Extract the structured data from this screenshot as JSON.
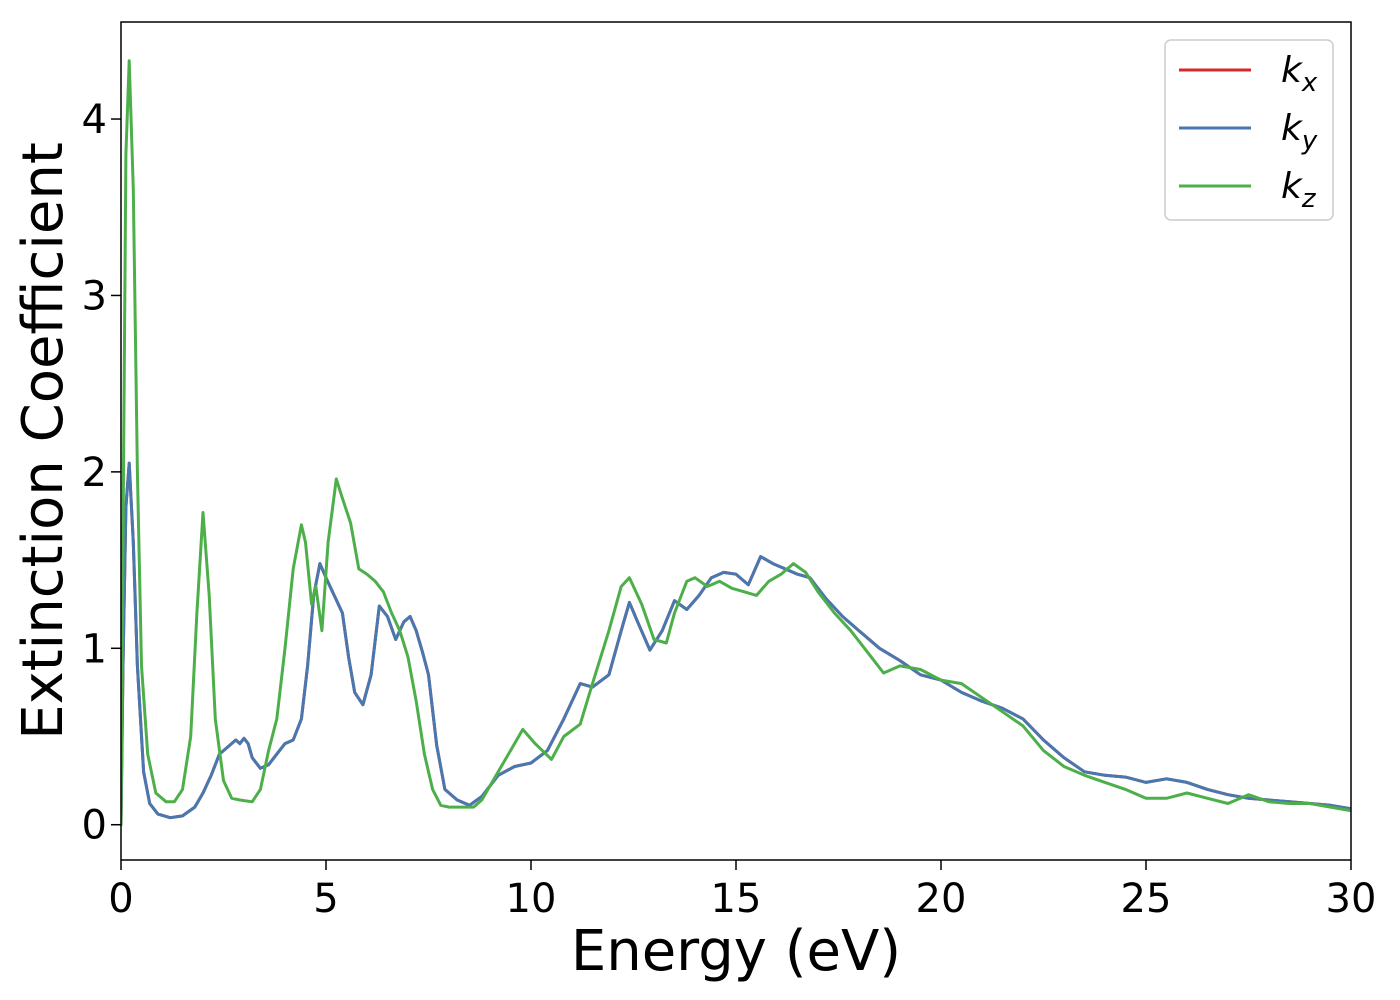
{
  "chart_data": {
    "type": "line",
    "title": "",
    "xlabel": "Energy (eV)",
    "ylabel": "Extinction Coefficient",
    "xlim": [
      0,
      30
    ],
    "ylim": [
      -0.2,
      4.55
    ],
    "xticks": [
      0,
      5,
      10,
      15,
      20,
      25,
      30
    ],
    "yticks": [
      0,
      1,
      2,
      3,
      4
    ],
    "grid": false,
    "legend_position": "top-right",
    "series": [
      {
        "name": "k_x",
        "label_base": "k",
        "label_sub": "x",
        "color": "#d62728",
        "points": [
          [
            0,
            0
          ],
          [
            0.05,
            0.9
          ],
          [
            0.12,
            1.8
          ],
          [
            0.2,
            2.05
          ],
          [
            0.3,
            1.6
          ],
          [
            0.4,
            0.9
          ],
          [
            0.55,
            0.3
          ],
          [
            0.7,
            0.12
          ],
          [
            0.9,
            0.06
          ],
          [
            1.2,
            0.04
          ],
          [
            1.5,
            0.05
          ],
          [
            1.8,
            0.1
          ],
          [
            2.0,
            0.18
          ],
          [
            2.2,
            0.28
          ],
          [
            2.4,
            0.4
          ],
          [
            2.6,
            0.44
          ],
          [
            2.8,
            0.48
          ],
          [
            2.9,
            0.46
          ],
          [
            3.0,
            0.49
          ],
          [
            3.1,
            0.46
          ],
          [
            3.2,
            0.38
          ],
          [
            3.4,
            0.32
          ],
          [
            3.6,
            0.34
          ],
          [
            3.8,
            0.4
          ],
          [
            4.0,
            0.46
          ],
          [
            4.2,
            0.48
          ],
          [
            4.4,
            0.6
          ],
          [
            4.55,
            0.9
          ],
          [
            4.7,
            1.3
          ],
          [
            4.85,
            1.48
          ],
          [
            5.0,
            1.4
          ],
          [
            5.2,
            1.3
          ],
          [
            5.4,
            1.2
          ],
          [
            5.55,
            0.95
          ],
          [
            5.7,
            0.75
          ],
          [
            5.9,
            0.68
          ],
          [
            6.1,
            0.85
          ],
          [
            6.3,
            1.24
          ],
          [
            6.5,
            1.18
          ],
          [
            6.7,
            1.05
          ],
          [
            6.9,
            1.15
          ],
          [
            7.05,
            1.18
          ],
          [
            7.2,
            1.1
          ],
          [
            7.35,
            0.98
          ],
          [
            7.5,
            0.85
          ],
          [
            7.7,
            0.45
          ],
          [
            7.9,
            0.2
          ],
          [
            8.2,
            0.14
          ],
          [
            8.5,
            0.11
          ],
          [
            8.8,
            0.16
          ],
          [
            9.2,
            0.28
          ],
          [
            9.6,
            0.33
          ],
          [
            10.0,
            0.35
          ],
          [
            10.4,
            0.42
          ],
          [
            10.8,
            0.6
          ],
          [
            11.2,
            0.8
          ],
          [
            11.5,
            0.78
          ],
          [
            11.9,
            0.85
          ],
          [
            12.2,
            1.1
          ],
          [
            12.4,
            1.26
          ],
          [
            12.6,
            1.15
          ],
          [
            12.9,
            0.99
          ],
          [
            13.2,
            1.1
          ],
          [
            13.5,
            1.27
          ],
          [
            13.8,
            1.22
          ],
          [
            14.1,
            1.3
          ],
          [
            14.4,
            1.4
          ],
          [
            14.7,
            1.43
          ],
          [
            15.0,
            1.42
          ],
          [
            15.3,
            1.36
          ],
          [
            15.6,
            1.52
          ],
          [
            15.9,
            1.48
          ],
          [
            16.2,
            1.45
          ],
          [
            16.5,
            1.42
          ],
          [
            16.8,
            1.4
          ],
          [
            17.2,
            1.28
          ],
          [
            17.6,
            1.18
          ],
          [
            18.0,
            1.1
          ],
          [
            18.5,
            1.0
          ],
          [
            19.0,
            0.93
          ],
          [
            19.5,
            0.85
          ],
          [
            20.0,
            0.82
          ],
          [
            20.5,
            0.75
          ],
          [
            21.0,
            0.7
          ],
          [
            21.5,
            0.66
          ],
          [
            22.0,
            0.6
          ],
          [
            22.5,
            0.48
          ],
          [
            23.0,
            0.38
          ],
          [
            23.5,
            0.3
          ],
          [
            24.0,
            0.28
          ],
          [
            24.5,
            0.27
          ],
          [
            25.0,
            0.24
          ],
          [
            25.5,
            0.26
          ],
          [
            26.0,
            0.24
          ],
          [
            26.5,
            0.2
          ],
          [
            27.0,
            0.17
          ],
          [
            27.5,
            0.15
          ],
          [
            28.0,
            0.14
          ],
          [
            28.5,
            0.13
          ],
          [
            29.0,
            0.12
          ],
          [
            29.5,
            0.11
          ],
          [
            30.0,
            0.09
          ]
        ]
      },
      {
        "name": "k_y",
        "label_base": "k",
        "label_sub": "y",
        "color": "#4878b0",
        "points": [
          [
            0,
            0
          ],
          [
            0.05,
            0.9
          ],
          [
            0.12,
            1.8
          ],
          [
            0.2,
            2.05
          ],
          [
            0.3,
            1.6
          ],
          [
            0.4,
            0.9
          ],
          [
            0.55,
            0.3
          ],
          [
            0.7,
            0.12
          ],
          [
            0.9,
            0.06
          ],
          [
            1.2,
            0.04
          ],
          [
            1.5,
            0.05
          ],
          [
            1.8,
            0.1
          ],
          [
            2.0,
            0.18
          ],
          [
            2.2,
            0.28
          ],
          [
            2.4,
            0.4
          ],
          [
            2.6,
            0.44
          ],
          [
            2.8,
            0.48
          ],
          [
            2.9,
            0.46
          ],
          [
            3.0,
            0.49
          ],
          [
            3.1,
            0.46
          ],
          [
            3.2,
            0.38
          ],
          [
            3.4,
            0.32
          ],
          [
            3.6,
            0.34
          ],
          [
            3.8,
            0.4
          ],
          [
            4.0,
            0.46
          ],
          [
            4.2,
            0.48
          ],
          [
            4.4,
            0.6
          ],
          [
            4.55,
            0.9
          ],
          [
            4.7,
            1.3
          ],
          [
            4.85,
            1.48
          ],
          [
            5.0,
            1.4
          ],
          [
            5.2,
            1.3
          ],
          [
            5.4,
            1.2
          ],
          [
            5.55,
            0.95
          ],
          [
            5.7,
            0.75
          ],
          [
            5.9,
            0.68
          ],
          [
            6.1,
            0.85
          ],
          [
            6.3,
            1.24
          ],
          [
            6.5,
            1.18
          ],
          [
            6.7,
            1.05
          ],
          [
            6.9,
            1.15
          ],
          [
            7.05,
            1.18
          ],
          [
            7.2,
            1.1
          ],
          [
            7.35,
            0.98
          ],
          [
            7.5,
            0.85
          ],
          [
            7.7,
            0.45
          ],
          [
            7.9,
            0.2
          ],
          [
            8.2,
            0.14
          ],
          [
            8.5,
            0.11
          ],
          [
            8.8,
            0.16
          ],
          [
            9.2,
            0.28
          ],
          [
            9.6,
            0.33
          ],
          [
            10.0,
            0.35
          ],
          [
            10.4,
            0.42
          ],
          [
            10.8,
            0.6
          ],
          [
            11.2,
            0.8
          ],
          [
            11.5,
            0.78
          ],
          [
            11.9,
            0.85
          ],
          [
            12.2,
            1.1
          ],
          [
            12.4,
            1.26
          ],
          [
            12.6,
            1.15
          ],
          [
            12.9,
            0.99
          ],
          [
            13.2,
            1.1
          ],
          [
            13.5,
            1.27
          ],
          [
            13.8,
            1.22
          ],
          [
            14.1,
            1.3
          ],
          [
            14.4,
            1.4
          ],
          [
            14.7,
            1.43
          ],
          [
            15.0,
            1.42
          ],
          [
            15.3,
            1.36
          ],
          [
            15.6,
            1.52
          ],
          [
            15.9,
            1.48
          ],
          [
            16.2,
            1.45
          ],
          [
            16.5,
            1.42
          ],
          [
            16.8,
            1.4
          ],
          [
            17.2,
            1.28
          ],
          [
            17.6,
            1.18
          ],
          [
            18.0,
            1.1
          ],
          [
            18.5,
            1.0
          ],
          [
            19.0,
            0.93
          ],
          [
            19.5,
            0.85
          ],
          [
            20.0,
            0.82
          ],
          [
            20.5,
            0.75
          ],
          [
            21.0,
            0.7
          ],
          [
            21.5,
            0.66
          ],
          [
            22.0,
            0.6
          ],
          [
            22.5,
            0.48
          ],
          [
            23.0,
            0.38
          ],
          [
            23.5,
            0.3
          ],
          [
            24.0,
            0.28
          ],
          [
            24.5,
            0.27
          ],
          [
            25.0,
            0.24
          ],
          [
            25.5,
            0.26
          ],
          [
            26.0,
            0.24
          ],
          [
            26.5,
            0.2
          ],
          [
            27.0,
            0.17
          ],
          [
            27.5,
            0.15
          ],
          [
            28.0,
            0.14
          ],
          [
            28.5,
            0.13
          ],
          [
            29.0,
            0.12
          ],
          [
            29.5,
            0.11
          ],
          [
            30.0,
            0.09
          ]
        ]
      },
      {
        "name": "k_z",
        "label_base": "k",
        "label_sub": "z",
        "color": "#4daf4a",
        "points": [
          [
            0,
            0
          ],
          [
            0.06,
            2.0
          ],
          [
            0.12,
            3.8
          ],
          [
            0.2,
            4.33
          ],
          [
            0.3,
            3.6
          ],
          [
            0.4,
            2.0
          ],
          [
            0.5,
            0.9
          ],
          [
            0.65,
            0.4
          ],
          [
            0.85,
            0.18
          ],
          [
            1.1,
            0.13
          ],
          [
            1.3,
            0.13
          ],
          [
            1.5,
            0.2
          ],
          [
            1.7,
            0.5
          ],
          [
            1.85,
            1.2
          ],
          [
            2.0,
            1.77
          ],
          [
            2.15,
            1.3
          ],
          [
            2.3,
            0.6
          ],
          [
            2.5,
            0.25
          ],
          [
            2.7,
            0.15
          ],
          [
            2.9,
            0.14
          ],
          [
            3.2,
            0.13
          ],
          [
            3.4,
            0.2
          ],
          [
            3.6,
            0.42
          ],
          [
            3.8,
            0.6
          ],
          [
            4.0,
            1.0
          ],
          [
            4.2,
            1.45
          ],
          [
            4.4,
            1.7
          ],
          [
            4.5,
            1.6
          ],
          [
            4.65,
            1.25
          ],
          [
            4.75,
            1.35
          ],
          [
            4.9,
            1.1
          ],
          [
            5.05,
            1.6
          ],
          [
            5.25,
            1.96
          ],
          [
            5.4,
            1.85
          ],
          [
            5.6,
            1.71
          ],
          [
            5.8,
            1.45
          ],
          [
            6.0,
            1.42
          ],
          [
            6.2,
            1.38
          ],
          [
            6.4,
            1.32
          ],
          [
            6.6,
            1.2
          ],
          [
            6.8,
            1.1
          ],
          [
            7.0,
            0.95
          ],
          [
            7.2,
            0.7
          ],
          [
            7.4,
            0.4
          ],
          [
            7.6,
            0.2
          ],
          [
            7.8,
            0.11
          ],
          [
            8.0,
            0.1
          ],
          [
            8.3,
            0.1
          ],
          [
            8.6,
            0.1
          ],
          [
            8.8,
            0.14
          ],
          [
            9.2,
            0.3
          ],
          [
            9.5,
            0.42
          ],
          [
            9.8,
            0.54
          ],
          [
            10.1,
            0.46
          ],
          [
            10.5,
            0.37
          ],
          [
            10.8,
            0.5
          ],
          [
            11.2,
            0.57
          ],
          [
            11.5,
            0.8
          ],
          [
            11.9,
            1.1
          ],
          [
            12.2,
            1.35
          ],
          [
            12.4,
            1.4
          ],
          [
            12.7,
            1.25
          ],
          [
            13.0,
            1.05
          ],
          [
            13.3,
            1.03
          ],
          [
            13.5,
            1.2
          ],
          [
            13.8,
            1.38
          ],
          [
            14.0,
            1.4
          ],
          [
            14.3,
            1.35
          ],
          [
            14.6,
            1.38
          ],
          [
            14.9,
            1.34
          ],
          [
            15.2,
            1.32
          ],
          [
            15.5,
            1.3
          ],
          [
            15.8,
            1.38
          ],
          [
            16.1,
            1.42
          ],
          [
            16.4,
            1.48
          ],
          [
            16.7,
            1.43
          ],
          [
            17.0,
            1.32
          ],
          [
            17.4,
            1.2
          ],
          [
            17.8,
            1.1
          ],
          [
            18.2,
            0.98
          ],
          [
            18.6,
            0.86
          ],
          [
            19.0,
            0.9
          ],
          [
            19.5,
            0.88
          ],
          [
            20.0,
            0.82
          ],
          [
            20.5,
            0.8
          ],
          [
            21.0,
            0.72
          ],
          [
            21.5,
            0.64
          ],
          [
            22.0,
            0.56
          ],
          [
            22.5,
            0.42
          ],
          [
            23.0,
            0.33
          ],
          [
            23.5,
            0.28
          ],
          [
            24.0,
            0.24
          ],
          [
            24.5,
            0.2
          ],
          [
            25.0,
            0.15
          ],
          [
            25.5,
            0.15
          ],
          [
            26.0,
            0.18
          ],
          [
            26.5,
            0.15
          ],
          [
            27.0,
            0.12
          ],
          [
            27.5,
            0.17
          ],
          [
            28.0,
            0.13
          ],
          [
            28.5,
            0.12
          ],
          [
            29.0,
            0.12
          ],
          [
            29.5,
            0.1
          ],
          [
            30.0,
            0.08
          ]
        ]
      }
    ]
  }
}
